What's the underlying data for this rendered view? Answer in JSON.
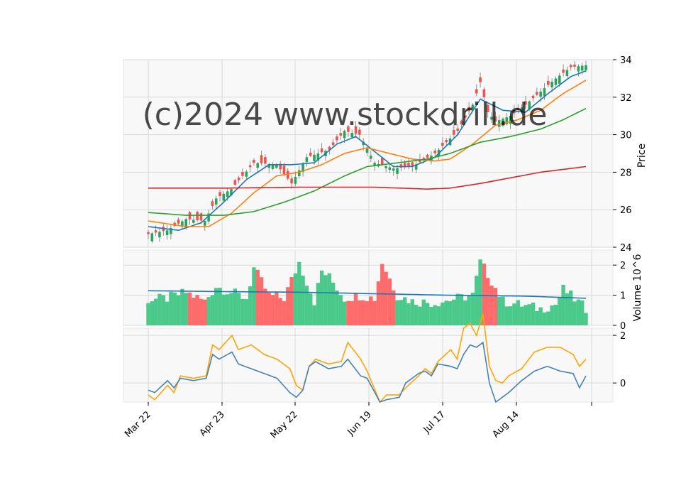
{
  "watermark": "(c)2024 www.stockdrill.de",
  "chart_data": {
    "type": "candlestick",
    "x_tick_labels": [
      "Mar 22",
      "Apr 23",
      "May 22",
      "Jun 19",
      "Jul 17",
      "Aug 14"
    ],
    "price_panel": {
      "ylabel": "Price",
      "ylim": [
        24,
        34
      ],
      "yticks": [
        "24",
        "26",
        "28",
        "30",
        "32",
        "34"
      ],
      "close_anchors": [
        [
          0,
          24.7
        ],
        [
          5,
          24.9
        ],
        [
          10,
          25.5
        ],
        [
          15,
          25.4
        ],
        [
          18,
          26.6
        ],
        [
          22,
          27.1
        ],
        [
          28,
          28.5
        ],
        [
          34,
          28.4
        ],
        [
          38,
          27.4
        ],
        [
          42,
          28.8
        ],
        [
          48,
          29.2
        ],
        [
          52,
          30.2
        ],
        [
          56,
          30.0
        ],
        [
          60,
          28.5
        ],
        [
          65,
          28.2
        ],
        [
          70,
          28.3
        ],
        [
          76,
          29.0
        ],
        [
          82,
          30.2
        ],
        [
          86,
          31.6
        ],
        [
          88,
          32.8
        ],
        [
          90,
          31.2
        ],
        [
          92,
          30.7
        ],
        [
          96,
          31.0
        ],
        [
          100,
          31.6
        ],
        [
          104,
          32.3
        ],
        [
          108,
          33.0
        ],
        [
          112,
          33.6
        ],
        [
          116,
          33.7
        ]
      ],
      "ma_lines": [
        {
          "color": "#1f77b4",
          "values": [
            [
              0,
              25.1
            ],
            [
              8,
              24.9
            ],
            [
              14,
              25.3
            ],
            [
              20,
              26.4
            ],
            [
              26,
              27.6
            ],
            [
              32,
              28.4
            ],
            [
              38,
              28.4
            ],
            [
              44,
              28.5
            ],
            [
              50,
              29.5
            ],
            [
              55,
              29.9
            ],
            [
              60,
              29.1
            ],
            [
              65,
              28.3
            ],
            [
              70,
              28.3
            ],
            [
              76,
              28.8
            ],
            [
              82,
              30.0
            ],
            [
              88,
              31.9
            ],
            [
              94,
              31.3
            ],
            [
              100,
              31.2
            ],
            [
              106,
              32.2
            ],
            [
              112,
              33.1
            ],
            [
              116,
              33.4
            ]
          ]
        },
        {
          "color": "#ff7f0e",
          "values": [
            [
              0,
              25.4
            ],
            [
              10,
              25.1
            ],
            [
              16,
              25.1
            ],
            [
              22,
              25.8
            ],
            [
              28,
              26.9
            ],
            [
              34,
              27.8
            ],
            [
              40,
              28.0
            ],
            [
              46,
              28.4
            ],
            [
              52,
              29.0
            ],
            [
              58,
              29.3
            ],
            [
              64,
              29.0
            ],
            [
              70,
              28.7
            ],
            [
              76,
              28.6
            ],
            [
              80,
              28.7
            ],
            [
              86,
              29.5
            ],
            [
              92,
              30.5
            ],
            [
              98,
              30.8
            ],
            [
              104,
              31.3
            ],
            [
              110,
              32.2
            ],
            [
              116,
              32.9
            ]
          ]
        },
        {
          "color": "#2ca02c",
          "values": [
            [
              0,
              25.85
            ],
            [
              10,
              25.7
            ],
            [
              20,
              25.7
            ],
            [
              28,
              25.9
            ],
            [
              36,
              26.4
            ],
            [
              44,
              27.0
            ],
            [
              52,
              27.8
            ],
            [
              58,
              28.3
            ],
            [
              66,
              28.5
            ],
            [
              74,
              28.7
            ],
            [
              80,
              29.0
            ],
            [
              88,
              29.6
            ],
            [
              96,
              29.9
            ],
            [
              104,
              30.3
            ],
            [
              110,
              30.8
            ],
            [
              116,
              31.4
            ]
          ]
        },
        {
          "color": "#d62728",
          "values": [
            [
              0,
              27.15
            ],
            [
              20,
              27.15
            ],
            [
              40,
              27.2
            ],
            [
              60,
              27.2
            ],
            [
              74,
              27.1
            ],
            [
              80,
              27.15
            ],
            [
              88,
              27.4
            ],
            [
              96,
              27.7
            ],
            [
              104,
              28.0
            ],
            [
              116,
              28.3
            ]
          ]
        }
      ]
    },
    "volume_panel": {
      "ylabel": "Volume  10^6",
      "ylim": [
        0,
        2.5
      ],
      "yticks": [
        "0",
        "1",
        "2"
      ],
      "volume_anchors": [
        [
          0,
          0.85
        ],
        [
          5,
          0.9
        ],
        [
          10,
          1.1
        ],
        [
          15,
          0.8
        ],
        [
          18,
          1.3
        ],
        [
          22,
          1.1
        ],
        [
          26,
          0.9
        ],
        [
          28,
          1.9
        ],
        [
          32,
          1.0
        ],
        [
          36,
          0.9
        ],
        [
          40,
          2.1
        ],
        [
          44,
          0.8
        ],
        [
          46,
          1.8
        ],
        [
          48,
          1.6
        ],
        [
          52,
          0.9
        ],
        [
          56,
          1.0
        ],
        [
          60,
          0.9
        ],
        [
          62,
          2.1
        ],
        [
          66,
          1.0
        ],
        [
          70,
          0.8
        ],
        [
          76,
          0.75
        ],
        [
          82,
          0.9
        ],
        [
          86,
          1.0
        ],
        [
          88,
          2.1
        ],
        [
          90,
          1.7
        ],
        [
          94,
          0.8
        ],
        [
          98,
          0.7
        ],
        [
          104,
          0.55
        ],
        [
          108,
          0.7
        ],
        [
          110,
          1.2
        ],
        [
          116,
          0.55
        ]
      ],
      "avg_line": {
        "color": "#1f77b4",
        "values": [
          [
            0,
            1.15
          ],
          [
            20,
            1.12
          ],
          [
            40,
            1.1
          ],
          [
            60,
            1.05
          ],
          [
            80,
            1.0
          ],
          [
            100,
            0.97
          ],
          [
            116,
            0.9
          ]
        ]
      }
    },
    "indicator_panel": {
      "ylim": [
        -0.8,
        2.3
      ],
      "yticks": [
        "0",
        "2"
      ],
      "lines": [
        {
          "color": "#ffa500",
          "values": [
            [
              0,
              -0.5
            ],
            [
              2,
              -0.7
            ],
            [
              6,
              -0.1
            ],
            [
              8,
              -0.4
            ],
            [
              10,
              0.3
            ],
            [
              14,
              0.2
            ],
            [
              18,
              0.3
            ],
            [
              20,
              1.6
            ],
            [
              22,
              1.4
            ],
            [
              26,
              2.0
            ],
            [
              28,
              1.4
            ],
            [
              32,
              1.6
            ],
            [
              36,
              1.2
            ],
            [
              40,
              1.0
            ],
            [
              44,
              0.6
            ],
            [
              46,
              -0.1
            ],
            [
              48,
              -0.3
            ],
            [
              50,
              0.7
            ],
            [
              52,
              1.0
            ],
            [
              56,
              0.8
            ],
            [
              60,
              0.9
            ],
            [
              62,
              1.7
            ],
            [
              66,
              1.0
            ],
            [
              68,
              0.5
            ],
            [
              72,
              -0.8
            ],
            [
              74,
              -0.5
            ],
            [
              78,
              -0.5
            ],
            [
              80,
              -0.2
            ],
            [
              84,
              0.3
            ],
            [
              86,
              0.6
            ],
            [
              88,
              0.4
            ],
            [
              90,
              0.9
            ],
            [
              94,
              1.4
            ],
            [
              96,
              1.0
            ],
            [
              98,
              2.3
            ],
            [
              100,
              2.5
            ],
            [
              102,
              2.0
            ],
            [
              104,
              2.9
            ],
            [
              106,
              0.7
            ],
            [
              108,
              0.1
            ],
            [
              110,
              0.0
            ],
            [
              112,
              0.3
            ],
            [
              116,
              0.6
            ],
            [
              120,
              1.3
            ],
            [
              124,
              1.5
            ],
            [
              128,
              1.5
            ],
            [
              132,
              1.2
            ],
            [
              134,
              0.7
            ],
            [
              136,
              1.0
            ]
          ]
        },
        {
          "color": "#4682b4",
          "values": [
            [
              0,
              -0.3
            ],
            [
              2,
              -0.4
            ],
            [
              6,
              0.1
            ],
            [
              8,
              -0.2
            ],
            [
              10,
              0.2
            ],
            [
              14,
              0.1
            ],
            [
              18,
              0.2
            ],
            [
              20,
              1.2
            ],
            [
              22,
              1.0
            ],
            [
              26,
              1.3
            ],
            [
              28,
              0.8
            ],
            [
              32,
              0.6
            ],
            [
              36,
              0.4
            ],
            [
              40,
              0.2
            ],
            [
              44,
              -0.4
            ],
            [
              46,
              -0.6
            ],
            [
              48,
              -0.3
            ],
            [
              50,
              0.7
            ],
            [
              52,
              0.9
            ],
            [
              56,
              0.6
            ],
            [
              60,
              0.7
            ],
            [
              62,
              1.0
            ],
            [
              66,
              0.3
            ],
            [
              68,
              0.2
            ],
            [
              72,
              -0.8
            ],
            [
              74,
              -0.7
            ],
            [
              78,
              -0.6
            ],
            [
              80,
              0.0
            ],
            [
              84,
              0.4
            ],
            [
              86,
              0.5
            ],
            [
              88,
              0.3
            ],
            [
              90,
              0.8
            ],
            [
              94,
              0.7
            ],
            [
              96,
              0.6
            ],
            [
              98,
              1.2
            ],
            [
              100,
              1.6
            ],
            [
              102,
              1.5
            ],
            [
              104,
              1.7
            ],
            [
              106,
              0.0
            ],
            [
              108,
              -0.8
            ],
            [
              110,
              -0.6
            ],
            [
              112,
              -0.4
            ],
            [
              116,
              0.1
            ],
            [
              120,
              0.5
            ],
            [
              124,
              0.7
            ],
            [
              128,
              0.5
            ],
            [
              132,
              0.4
            ],
            [
              134,
              -0.2
            ],
            [
              136,
              0.3
            ]
          ]
        }
      ]
    },
    "colors": {
      "up": "#26a65b",
      "down": "#ef5350",
      "up_volume": "#4bc98a",
      "down_volume": "#ff6b6b",
      "panel_bg": "#f8f8f8",
      "grid": "#d9d9d9"
    }
  }
}
